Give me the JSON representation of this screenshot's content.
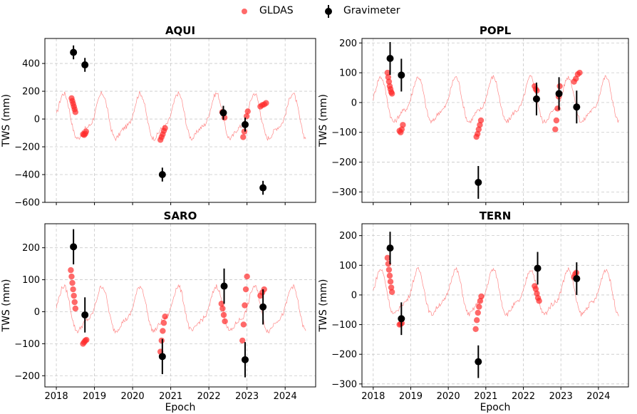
{
  "legend": {
    "placement": "top-center",
    "items": [
      {
        "label": "GLDAS",
        "marker": "circle",
        "color": "#ff2a2a"
      },
      {
        "label": "Gravimeter",
        "marker": "circle-errorbar",
        "color": "#000000"
      }
    ]
  },
  "chart_data": [
    {
      "type": "scatter",
      "title": "AQUI",
      "xlabel": "",
      "ylabel": "TWS (mm)",
      "xlim": [
        2017.7,
        2024.8
      ],
      "ylim": [
        -600,
        580
      ],
      "yticks": [
        -600,
        -400,
        -200,
        0,
        200,
        400
      ],
      "xticks": [
        2018,
        2019,
        2020,
        2021,
        2022,
        2023,
        2024
      ],
      "grid": true,
      "series": [
        {
          "name": "GLDAS",
          "x": [
            2018.4,
            2018.42,
            2018.44,
            2018.46,
            2018.48,
            2018.5,
            2018.7,
            2018.73,
            2018.76,
            2018.78,
            2020.73,
            2020.76,
            2020.79,
            2020.82,
            2020.85,
            2022.35,
            2022.38,
            2022.41,
            2022.9,
            2022.93,
            2022.96,
            2022.99,
            2023.02,
            2023.35,
            2023.4,
            2023.45,
            2023.5
          ],
          "y": [
            150,
            130,
            110,
            90,
            70,
            50,
            -110,
            -115,
            -105,
            -90,
            -150,
            -130,
            -110,
            -85,
            -65,
            50,
            40,
            10,
            -130,
            -90,
            -40,
            20,
            55,
            90,
            100,
            105,
            115
          ]
        },
        {
          "name": "Gravimeter",
          "x": [
            2018.45,
            2018.75,
            2020.78,
            2022.38,
            2022.95,
            2023.42
          ],
          "y": [
            480,
            390,
            -400,
            45,
            -40,
            -495
          ],
          "err": [
            50,
            50,
            50,
            50,
            50,
            50
          ]
        }
      ]
    },
    {
      "type": "scatter",
      "title": "POPL",
      "xlabel": "",
      "ylabel": "TWS (mm)",
      "xlim": [
        2017.7,
        2024.8
      ],
      "ylim": [
        -335,
        215
      ],
      "yticks": [
        -300,
        -200,
        -100,
        0,
        100,
        200
      ],
      "xticks": [
        2018,
        2019,
        2020,
        2021,
        2022,
        2023,
        2024
      ],
      "grid": true,
      "series": [
        {
          "name": "GLDAS",
          "x": [
            2018.38,
            2018.4,
            2018.42,
            2018.44,
            2018.46,
            2018.48,
            2018.5,
            2018.7,
            2018.73,
            2018.76,
            2018.79,
            2020.75,
            2020.78,
            2020.81,
            2020.84,
            2020.87,
            2022.3,
            2022.33,
            2022.36,
            2022.85,
            2022.88,
            2022.91,
            2022.94,
            2022.97,
            2023.35,
            2023.4,
            2023.45,
            2023.5
          ],
          "y": [
            100,
            85,
            70,
            55,
            45,
            35,
            30,
            -95,
            -100,
            -90,
            -75,
            -115,
            -105,
            -90,
            -75,
            -60,
            55,
            45,
            40,
            -90,
            -60,
            -20,
            20,
            55,
            70,
            80,
            95,
            100
          ]
        },
        {
          "name": "Gravimeter",
          "x": [
            2018.45,
            2018.75,
            2020.8,
            2022.35,
            2022.95,
            2023.42
          ],
          "y": [
            148,
            92,
            -268,
            12,
            30,
            -15
          ],
          "err": [
            55,
            55,
            55,
            55,
            55,
            55
          ]
        }
      ]
    },
    {
      "type": "scatter",
      "title": "SARO",
      "xlabel": "Epoch",
      "ylabel": "TWS (mm)",
      "xlim": [
        2017.7,
        2024.8
      ],
      "ylim": [
        -235,
        275
      ],
      "yticks": [
        -200,
        -100,
        0,
        100,
        200
      ],
      "xticks": [
        2018,
        2019,
        2020,
        2021,
        2022,
        2023,
        2024
      ],
      "xticklabels": [
        "2018",
        "2019",
        "2020",
        "2021",
        "2022",
        "2023",
        "2024"
      ],
      "grid": true,
      "series": [
        {
          "name": "GLDAS",
          "x": [
            2018.38,
            2018.4,
            2018.42,
            2018.44,
            2018.46,
            2018.48,
            2018.5,
            2018.7,
            2018.73,
            2018.76,
            2018.79,
            2020.73,
            2020.76,
            2020.79,
            2020.82,
            2020.85,
            2022.33,
            2022.36,
            2022.39,
            2022.42,
            2022.88,
            2022.91,
            2022.94,
            2022.97,
            2023.0,
            2023.35,
            2023.4,
            2023.45
          ],
          "y": [
            130,
            110,
            90,
            70,
            50,
            30,
            10,
            -100,
            -95,
            -90,
            -88,
            -125,
            -90,
            -60,
            -35,
            -15,
            25,
            10,
            -10,
            -30,
            -90,
            -40,
            20,
            70,
            110,
            50,
            60,
            70
          ]
        },
        {
          "name": "Gravimeter",
          "x": [
            2018.45,
            2018.75,
            2020.78,
            2022.4,
            2022.95,
            2023.42
          ],
          "y": [
            203,
            -10,
            -140,
            80,
            -150,
            15
          ],
          "err": [
            55,
            55,
            55,
            55,
            55,
            55
          ]
        }
      ]
    },
    {
      "type": "scatter",
      "title": "TERN",
      "xlabel": "Epoch",
      "ylabel": "TWS (mm)",
      "xlim": [
        2017.7,
        2024.8
      ],
      "ylim": [
        -310,
        240
      ],
      "yticks": [
        -300,
        -200,
        -100,
        0,
        100,
        200
      ],
      "xticks": [
        2018,
        2019,
        2020,
        2021,
        2022,
        2023,
        2024
      ],
      "xticklabels": [
        "2018",
        "2019",
        "2020",
        "2021",
        "2022",
        "2023",
        "2024"
      ],
      "grid": true,
      "series": [
        {
          "name": "GLDAS",
          "x": [
            2018.38,
            2018.4,
            2018.42,
            2018.44,
            2018.46,
            2018.48,
            2018.5,
            2018.7,
            2018.73,
            2018.76,
            2020.73,
            2020.76,
            2020.79,
            2020.82,
            2020.85,
            2020.88,
            2022.3,
            2022.33,
            2022.36,
            2022.39,
            2022.42,
            2023.35,
            2023.38,
            2023.41
          ],
          "y": [
            125,
            105,
            85,
            65,
            45,
            25,
            10,
            -100,
            -98,
            -95,
            -115,
            -85,
            -60,
            -40,
            -20,
            -5,
            30,
            20,
            5,
            -10,
            -20,
            60,
            70,
            75
          ]
        },
        {
          "name": "Gravimeter",
          "x": [
            2018.45,
            2018.75,
            2020.8,
            2022.38,
            2023.42
          ],
          "y": [
            158,
            -80,
            -225,
            90,
            55
          ],
          "err": [
            55,
            55,
            55,
            55,
            55
          ]
        }
      ]
    }
  ]
}
